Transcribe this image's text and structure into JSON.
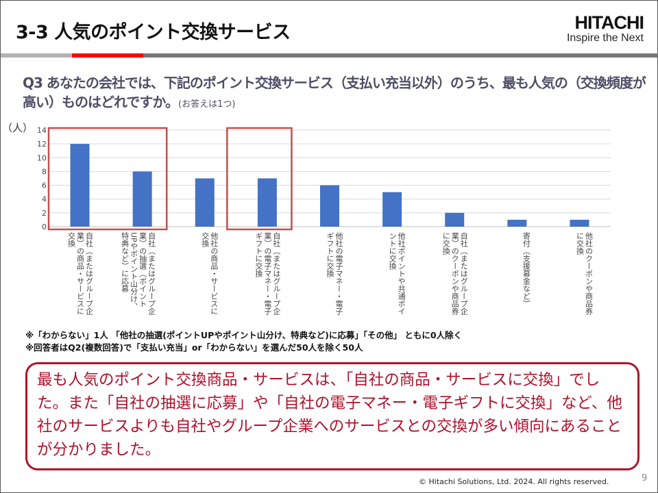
{
  "header": {
    "title": "3-3  人気のポイント交換サービス",
    "logo_brand": "HITACHI",
    "logo_tagline": "Inspire the Next"
  },
  "question": {
    "text": "Q3  あなたの会社では、下記のポイント交換サービス（支払い充当以外）のうち、最も人気の（交換頻度が高い）ものはどれですか。",
    "note": "(お答えは1つ)"
  },
  "chart_data": {
    "type": "bar",
    "ylabel": "（人）",
    "ylim": [
      0,
      14
    ],
    "yticks": [
      0,
      2,
      4,
      6,
      8,
      10,
      12,
      14
    ],
    "grid": true,
    "bar_color": "#4472c4",
    "highlight_color": "#c0504d",
    "highlighted_categories": [
      [
        0,
        1
      ],
      [
        3,
        3
      ]
    ],
    "categories": [
      "自社（またはグループ企業）の商品・サービスに交換",
      "自社（またはグループ企業）の抽選（ポイントUPやポイント山分け、特典など）に応募",
      "他社の商品・サービスに交換",
      "自社（またはグループ企業）の電子マネー・電子ギフトに交換",
      "他社の電子マネー・電子ギフトに交換",
      "他社ポイントや共通ポイントに交換",
      "自社（またはグループ企業）のクーポンや商品券に交換",
      "寄付（支援募金など）",
      "他社のクーポンや商品券に交換"
    ],
    "values": [
      12,
      8,
      7,
      7,
      6,
      5,
      2,
      1,
      1
    ]
  },
  "notes": [
    "※「わからない」1人 「他社の抽選(ポイントUPやポイント山分け、特典など)に応募」「その他」 ともに0人除く",
    "※回答者はQ2(複数回答)で「支払い充当」or「わからない」を選んだ50人を除く50人"
  ],
  "summary": "最も人気のポイント交換商品・サービスは、「自社の商品・サービスに交換」でした。また「自社の抽選に応募」や「自社の電子マネー・電子ギフトに交換」など、他社のサービスよりも自社やグループ企業へのサービスとの交換が多い傾向にあることが分かりました。",
  "footer": {
    "copyright": "© Hitachi Solutions, Ltd. 2024. All rights reserved.",
    "page": "9"
  }
}
